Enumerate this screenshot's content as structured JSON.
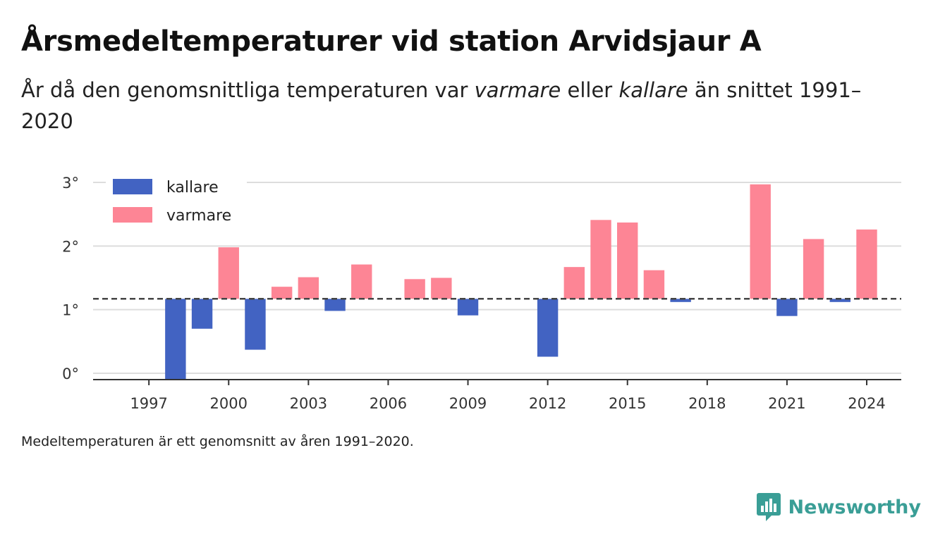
{
  "title": "Årsmedeltemperaturer vid station Arvidsjaur A",
  "subtitle": {
    "part1": "År då den genomsnittliga temperaturen var ",
    "word_warm": "varmare",
    "part2": " eller ",
    "word_cold": "kallare",
    "part3": " än snittet 1991–2020"
  },
  "footnote": "Medeltemperaturen är ett genomsnitt av åren 1991–2020.",
  "brand": {
    "name": "Newsworthy",
    "icon": "newsworthy-logo-icon",
    "color": "#3a9e96"
  },
  "colors": {
    "colder": "#4263c2",
    "warmer": "#fd8595",
    "grid": "#dddddd",
    "baseline": "#444444"
  },
  "chart_data": {
    "type": "bar",
    "baseline": 1.17,
    "ylim": [
      -0.1,
      3.1
    ],
    "xlim": [
      1994.9,
      2025.3
    ],
    "yticks": [
      0,
      1,
      2,
      3
    ],
    "ytick_labels": [
      "0°",
      "1°",
      "2°",
      "3°"
    ],
    "xticks": [
      1997,
      2000,
      2003,
      2006,
      2009,
      2012,
      2015,
      2018,
      2021,
      2024
    ],
    "xtick_labels": [
      "1997",
      "2000",
      "2003",
      "2006",
      "2009",
      "2012",
      "2015",
      "2018",
      "2021",
      "2024"
    ],
    "legend": [
      {
        "label": "kallare",
        "key": "colder"
      },
      {
        "label": "varmare",
        "key": "warmer"
      }
    ],
    "legend_position": "top-left",
    "grid": true,
    "points": [
      {
        "x": 1998,
        "y": -0.1
      },
      {
        "x": 1999,
        "y": 0.7
      },
      {
        "x": 2000,
        "y": 1.98
      },
      {
        "x": 2001,
        "y": 0.37
      },
      {
        "x": 2002,
        "y": 1.36
      },
      {
        "x": 2003,
        "y": 1.51
      },
      {
        "x": 2004,
        "y": 0.98
      },
      {
        "x": 2005,
        "y": 1.71
      },
      {
        "x": 2007,
        "y": 1.48
      },
      {
        "x": 2008,
        "y": 1.5
      },
      {
        "x": 2009,
        "y": 0.91
      },
      {
        "x": 2012,
        "y": 0.26
      },
      {
        "x": 2013,
        "y": 1.67
      },
      {
        "x": 2014,
        "y": 2.41
      },
      {
        "x": 2015,
        "y": 2.37
      },
      {
        "x": 2016,
        "y": 1.62
      },
      {
        "x": 2017,
        "y": 1.12
      },
      {
        "x": 2020,
        "y": 2.97
      },
      {
        "x": 2021,
        "y": 0.9
      },
      {
        "x": 2022,
        "y": 2.11
      },
      {
        "x": 2023,
        "y": 1.12
      },
      {
        "x": 2024,
        "y": 2.26
      }
    ]
  }
}
